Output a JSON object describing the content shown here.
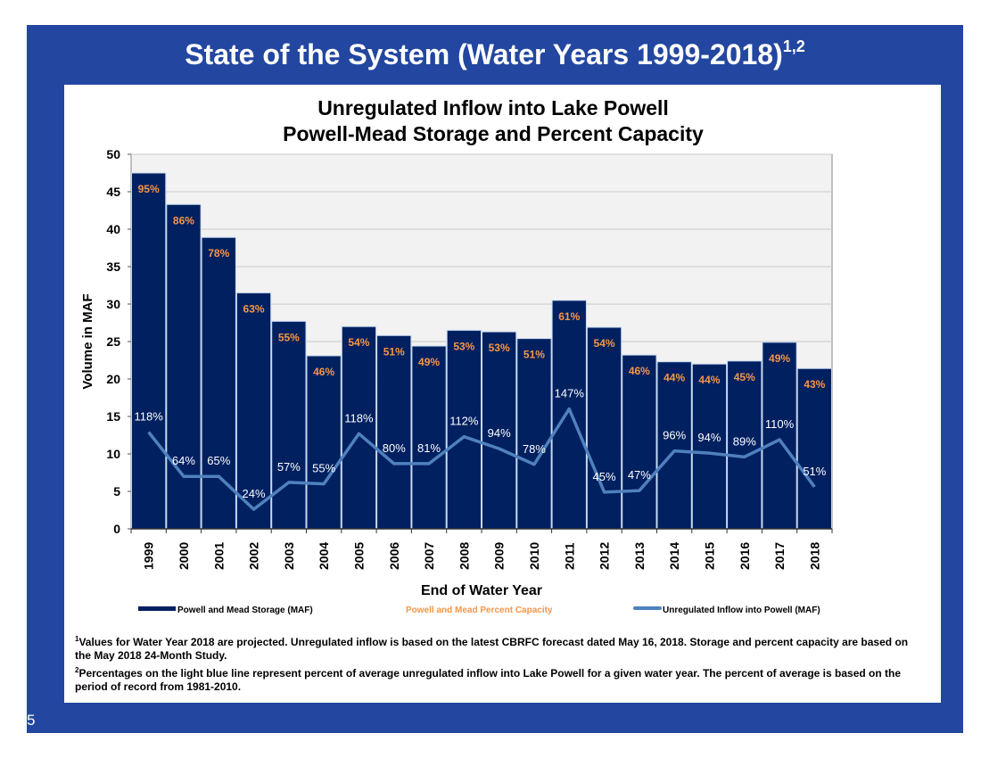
{
  "slide": {
    "title": "State of the System (Water Years 1999-2018)",
    "title_superscript": "1,2",
    "page_number": "5",
    "footnotes": [
      {
        "mark": "1",
        "text": "Values for Water Year 2018 are projected. Unregulated inflow is based on the latest CBRFC forecast dated May 16, 2018. Storage and percent capacity are based on the May 2018 24-Month Study."
      },
      {
        "mark": "2",
        "text": "Percentages on the light blue line represent percent of average unregulated inflow into Lake Powell for a given water year.  The percent of average is based on the period of record from 1981-2010."
      }
    ]
  },
  "colors": {
    "frame": "#2347a0",
    "bar": "#002060",
    "capacity": "#f79646",
    "line": "#4f81bd",
    "plot_bg": "#f2f2f2"
  },
  "chart_data": {
    "type": "bar+line",
    "title_lines": [
      "Unregulated Inflow into Lake Powell",
      "Powell-Mead Storage and Percent Capacity"
    ],
    "xlabel": "End of Water Year",
    "ylabel": "Volume in MAF",
    "ylim": [
      0,
      50
    ],
    "yticks": [
      0,
      5,
      10,
      15,
      20,
      25,
      30,
      35,
      40,
      45,
      50
    ],
    "grid": true,
    "legend_position": "bottom",
    "categories": [
      "1999",
      "2000",
      "2001",
      "2002",
      "2003",
      "2004",
      "2005",
      "2006",
      "2007",
      "2008",
      "2009",
      "2010",
      "2011",
      "2012",
      "2013",
      "2014",
      "2015",
      "2016",
      "2017",
      "2018"
    ],
    "series": [
      {
        "name": "Powell and Mead Storage (MAF)",
        "type": "bar",
        "values": [
          47.5,
          43.3,
          38.9,
          31.5,
          27.7,
          23.1,
          27.0,
          25.8,
          24.4,
          26.5,
          26.3,
          25.4,
          30.5,
          26.9,
          23.2,
          22.3,
          22.0,
          22.4,
          24.9,
          21.4
        ]
      },
      {
        "name": "Powell and Mead Percent Capacity",
        "type": "label",
        "labels": [
          "95%",
          "86%",
          "78%",
          "63%",
          "55%",
          "46%",
          "54%",
          "51%",
          "49%",
          "53%",
          "53%",
          "51%",
          "61%",
          "54%",
          "46%",
          "44%",
          "44%",
          "45%",
          "49%",
          "43%"
        ]
      },
      {
        "name": "Unregulated Inflow into Powell  (MAF)",
        "type": "line",
        "values": [
          12.9,
          7.0,
          7.0,
          2.6,
          6.2,
          6.0,
          12.7,
          8.7,
          8.7,
          12.3,
          10.7,
          8.6,
          16.0,
          4.9,
          5.1,
          10.4,
          10.1,
          9.6,
          11.9,
          5.6
        ],
        "labels": [
          "118%",
          "64%",
          "65%",
          "24%",
          "57%",
          "55%",
          "118%",
          "80%",
          "81%",
          "112%",
          "94%",
          "78%",
          "147%",
          "45%",
          "47%",
          "96%",
          "94%",
          "89%",
          "110%",
          "51%"
        ]
      }
    ]
  }
}
